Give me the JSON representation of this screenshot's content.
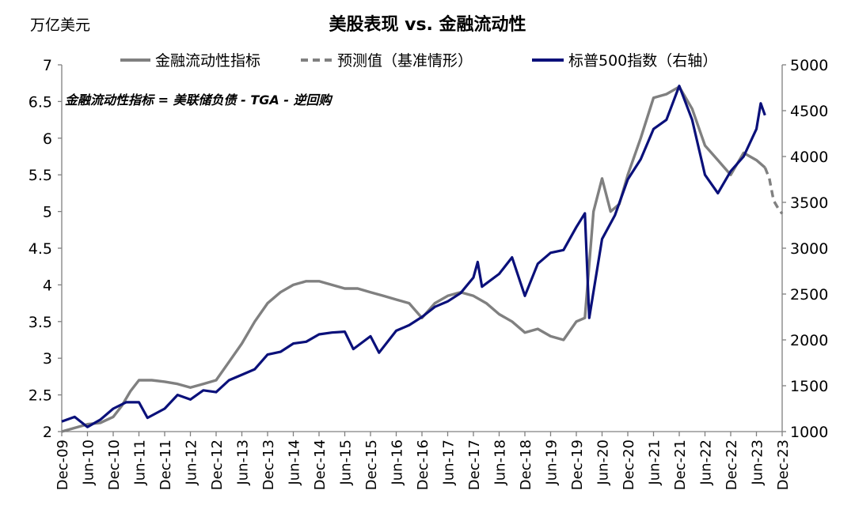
{
  "chart_data": {
    "type": "line",
    "title": "美股表现 vs. 金融流动性",
    "unit_label": "万亿美元",
    "annotation": "金融流动性指标 = 美联储负债 - TGA - 逆回购",
    "x_tick_labels": [
      "Dec-09",
      "Jun-10",
      "Dec-10",
      "Jun-11",
      "Dec-11",
      "Jun-12",
      "Dec-12",
      "Jun-13",
      "Dec-13",
      "Jun-14",
      "Dec-14",
      "Jun-15",
      "Dec-15",
      "Jun-16",
      "Dec-16",
      "Jun-17",
      "Dec-17",
      "Jun-18",
      "Dec-18",
      "Jun-19",
      "Dec-19",
      "Jun-20",
      "Dec-20",
      "Jun-21",
      "Dec-21",
      "Jun-22",
      "Dec-22",
      "Jun-23",
      "Dec-23"
    ],
    "x_range": [
      "2009-12",
      "2023-12"
    ],
    "y_left": {
      "ylim": [
        2,
        7
      ],
      "ticks": [
        "2",
        "2.5",
        "3",
        "3.5",
        "4",
        "4.5",
        "5",
        "5.5",
        "6",
        "6.5",
        "7"
      ]
    },
    "y_right": {
      "ylim": [
        1000,
        5000
      ],
      "ticks": [
        "1000",
        "1500",
        "2000",
        "2500",
        "3000",
        "3500",
        "4000",
        "4500",
        "5000"
      ]
    },
    "legend_position": "top",
    "series": [
      {
        "name": "金融流动性指标",
        "axis": "left",
        "color": "#808080",
        "dashed": false,
        "points": [
          [
            "2009-12",
            2.0
          ],
          [
            "2010-03",
            2.05
          ],
          [
            "2010-06",
            2.1
          ],
          [
            "2010-09",
            2.12
          ],
          [
            "2010-12",
            2.2
          ],
          [
            "2011-02",
            2.35
          ],
          [
            "2011-04",
            2.55
          ],
          [
            "2011-06",
            2.7
          ],
          [
            "2011-09",
            2.7
          ],
          [
            "2011-12",
            2.68
          ],
          [
            "2012-03",
            2.65
          ],
          [
            "2012-06",
            2.6
          ],
          [
            "2012-09",
            2.65
          ],
          [
            "2012-12",
            2.7
          ],
          [
            "2013-03",
            2.95
          ],
          [
            "2013-06",
            3.2
          ],
          [
            "2013-09",
            3.5
          ],
          [
            "2013-12",
            3.75
          ],
          [
            "2014-03",
            3.9
          ],
          [
            "2014-06",
            4.0
          ],
          [
            "2014-09",
            4.05
          ],
          [
            "2014-12",
            4.05
          ],
          [
            "2015-03",
            4.0
          ],
          [
            "2015-06",
            3.95
          ],
          [
            "2015-09",
            3.95
          ],
          [
            "2015-12",
            3.9
          ],
          [
            "2016-03",
            3.85
          ],
          [
            "2016-06",
            3.8
          ],
          [
            "2016-09",
            3.75
          ],
          [
            "2016-12",
            3.55
          ],
          [
            "2017-03",
            3.75
          ],
          [
            "2017-06",
            3.85
          ],
          [
            "2017-09",
            3.9
          ],
          [
            "2017-12",
            3.85
          ],
          [
            "2018-03",
            3.75
          ],
          [
            "2018-06",
            3.6
          ],
          [
            "2018-09",
            3.5
          ],
          [
            "2018-12",
            3.35
          ],
          [
            "2019-03",
            3.4
          ],
          [
            "2019-06",
            3.3
          ],
          [
            "2019-09",
            3.25
          ],
          [
            "2019-12",
            3.5
          ],
          [
            "2020-02",
            3.55
          ],
          [
            "2020-04",
            5.0
          ],
          [
            "2020-06",
            5.45
          ],
          [
            "2020-08",
            5.0
          ],
          [
            "2020-10",
            5.1
          ],
          [
            "2020-12",
            5.5
          ],
          [
            "2021-03",
            6.0
          ],
          [
            "2021-06",
            6.55
          ],
          [
            "2021-09",
            6.6
          ],
          [
            "2021-12",
            6.7
          ],
          [
            "2022-03",
            6.4
          ],
          [
            "2022-06",
            5.9
          ],
          [
            "2022-09",
            5.7
          ],
          [
            "2022-12",
            5.5
          ],
          [
            "2023-03",
            5.8
          ],
          [
            "2023-06",
            5.7
          ],
          [
            "2023-08",
            5.6
          ]
        ]
      },
      {
        "name": "预测值（基准情形）",
        "axis": "left",
        "color": "#808080",
        "dashed": true,
        "points": [
          [
            "2023-08",
            5.6
          ],
          [
            "2023-09",
            5.45
          ],
          [
            "2023-10",
            5.15
          ],
          [
            "2023-11",
            5.05
          ],
          [
            "2023-12",
            4.97
          ]
        ]
      },
      {
        "name": "标普500指数（右轴）",
        "axis": "right",
        "color": "#0a107a",
        "dashed": false,
        "points": [
          [
            "2009-12",
            1110
          ],
          [
            "2010-03",
            1160
          ],
          [
            "2010-06",
            1050
          ],
          [
            "2010-09",
            1130
          ],
          [
            "2010-12",
            1250
          ],
          [
            "2011-03",
            1320
          ],
          [
            "2011-06",
            1320
          ],
          [
            "2011-08",
            1150
          ],
          [
            "2011-12",
            1250
          ],
          [
            "2012-03",
            1400
          ],
          [
            "2012-06",
            1350
          ],
          [
            "2012-09",
            1450
          ],
          [
            "2012-12",
            1430
          ],
          [
            "2013-03",
            1560
          ],
          [
            "2013-06",
            1620
          ],
          [
            "2013-09",
            1680
          ],
          [
            "2013-12",
            1840
          ],
          [
            "2014-03",
            1870
          ],
          [
            "2014-06",
            1960
          ],
          [
            "2014-09",
            1980
          ],
          [
            "2014-12",
            2060
          ],
          [
            "2015-03",
            2080
          ],
          [
            "2015-06",
            2090
          ],
          [
            "2015-08",
            1900
          ],
          [
            "2015-12",
            2040
          ],
          [
            "2016-02",
            1860
          ],
          [
            "2016-06",
            2100
          ],
          [
            "2016-09",
            2160
          ],
          [
            "2016-12",
            2250
          ],
          [
            "2017-03",
            2360
          ],
          [
            "2017-06",
            2420
          ],
          [
            "2017-09",
            2510
          ],
          [
            "2017-12",
            2680
          ],
          [
            "2018-01",
            2850
          ],
          [
            "2018-02",
            2580
          ],
          [
            "2018-06",
            2720
          ],
          [
            "2018-09",
            2900
          ],
          [
            "2018-12",
            2480
          ],
          [
            "2019-03",
            2830
          ],
          [
            "2019-06",
            2950
          ],
          [
            "2019-09",
            2980
          ],
          [
            "2019-12",
            3230
          ],
          [
            "2020-02",
            3380
          ],
          [
            "2020-03",
            2240
          ],
          [
            "2020-06",
            3100
          ],
          [
            "2020-09",
            3360
          ],
          [
            "2020-12",
            3750
          ],
          [
            "2021-03",
            3970
          ],
          [
            "2021-06",
            4300
          ],
          [
            "2021-09",
            4400
          ],
          [
            "2021-12",
            4770
          ],
          [
            "2022-03",
            4400
          ],
          [
            "2022-06",
            3800
          ],
          [
            "2022-09",
            3600
          ],
          [
            "2022-12",
            3840
          ],
          [
            "2023-03",
            4000
          ],
          [
            "2023-06",
            4300
          ],
          [
            "2023-07",
            4580
          ],
          [
            "2023-08",
            4450
          ]
        ]
      }
    ]
  }
}
